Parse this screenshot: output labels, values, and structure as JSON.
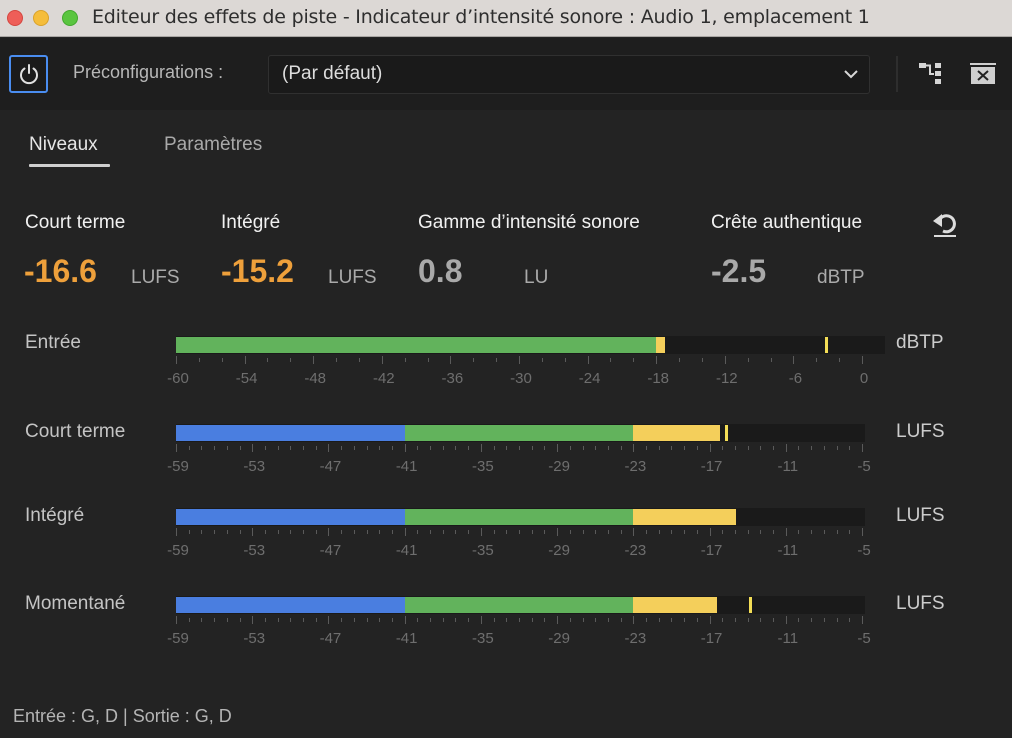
{
  "window": {
    "title": "Editeur des effets de piste - Indicateur d’intensité sonore : Audio 1, emplacement 1"
  },
  "toolbar": {
    "power_icon": "power-icon",
    "presets_label": "Préconfigurations :",
    "preset_value": "(Par défaut)",
    "routing_icon": "routing-icon",
    "close_icon": "close-panel-icon"
  },
  "tabs": [
    {
      "label": "Niveaux",
      "active": true
    },
    {
      "label": "Paramètres",
      "active": false
    }
  ],
  "stats": [
    {
      "label": "Court terme",
      "value": "-16.6",
      "unit": "LUFS",
      "color": "#eea03b"
    },
    {
      "label": "Intégré",
      "value": "-15.2",
      "unit": "LUFS",
      "color": "#eea03b"
    },
    {
      "label": "Gamme d’intensité sonore",
      "value": "0.8",
      "unit": "LU",
      "color": "#a9a9a9"
    },
    {
      "label": "Crête authentique",
      "value": "-2.5",
      "unit": "dBTP",
      "color": "#a9a9a9"
    }
  ],
  "reset_icon": "reset-icon",
  "meters": [
    {
      "label": "Entrée",
      "unit": "dBTP",
      "scale": [
        "-60",
        "-54",
        "-48",
        "-42",
        "-36",
        "-30",
        "-24",
        "-18",
        "-12",
        "-6",
        "0"
      ],
      "min": -60,
      "max": 0,
      "segments": [
        {
          "color": "green",
          "from": -60,
          "to": -18
        },
        {
          "color": "yellow",
          "from": -18,
          "to": -17.2
        }
      ],
      "peak": -3.2
    },
    {
      "label": "Court terme",
      "unit": "LUFS",
      "scale": [
        "-59",
        "-53",
        "-47",
        "-41",
        "-35",
        "-29",
        "-23",
        "-17",
        "-11",
        "-5"
      ],
      "min": -59,
      "max": -5,
      "segments": [
        {
          "color": "blue",
          "from": -59,
          "to": -41
        },
        {
          "color": "green",
          "from": -41,
          "to": -23
        },
        {
          "color": "yellow",
          "from": -23,
          "to": -16.2
        }
      ],
      "peak": -15.8
    },
    {
      "label": "Intégré",
      "unit": "LUFS",
      "scale": [
        "-59",
        "-53",
        "-47",
        "-41",
        "-35",
        "-29",
        "-23",
        "-17",
        "-11",
        "-5"
      ],
      "min": -59,
      "max": -5,
      "segments": [
        {
          "color": "blue",
          "from": -59,
          "to": -41
        },
        {
          "color": "green",
          "from": -41,
          "to": -23
        },
        {
          "color": "yellow",
          "from": -23,
          "to": -14.9
        }
      ],
      "peak": null
    },
    {
      "label": "Momentané",
      "unit": "LUFS",
      "scale": [
        "-59",
        "-53",
        "-47",
        "-41",
        "-35",
        "-29",
        "-23",
        "-17",
        "-11",
        "-5"
      ],
      "min": -59,
      "max": -5,
      "segments": [
        {
          "color": "blue",
          "from": -59,
          "to": -41
        },
        {
          "color": "green",
          "from": -41,
          "to": -23
        },
        {
          "color": "yellow",
          "from": -23,
          "to": -16.4
        }
      ],
      "peak": -13.9
    }
  ],
  "footer": {
    "io_text": "Entrée : G, D | Sortie : G, D"
  },
  "colors": {
    "blue": "#4a7ee0",
    "green": "#62b35c",
    "yellow": "#f4cf5b",
    "orange": "#eea03b",
    "accent": "#4a8df0"
  }
}
